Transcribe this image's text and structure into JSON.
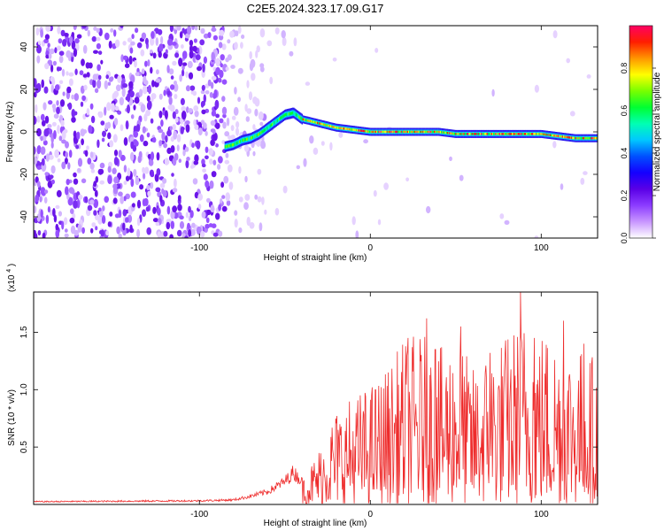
{
  "figure": {
    "title": "C2E5.2024.323.17.09.G17"
  },
  "chart_data": [
    {
      "type": "heatmap",
      "xlabel": "Height of straight line (km)",
      "ylabel": "Frequency (Hz)",
      "xlim": [
        -197,
        133
      ],
      "ylim": [
        -50,
        50
      ],
      "xticks": [
        -100,
        0,
        100
      ],
      "yticks": [
        -40,
        -20,
        0,
        20,
        40
      ],
      "colorbar": {
        "label": "Normalized spectral amplitude",
        "range": [
          0,
          1
        ],
        "ticks": [
          "0.0",
          "0.2",
          "0.4",
          "0.6",
          "0.8"
        ],
        "colors": [
          "#ffffff",
          "#c896ff",
          "#8c3cff",
          "#5a00e6",
          "#1400ff",
          "#0050ff",
          "#00c8ff",
          "#00ffb4",
          "#00ff32",
          "#78ff00",
          "#ffff00",
          "#ff9600",
          "#ff1e00",
          "#ff0064"
        ]
      },
      "ridge": {
        "x": [
          -85,
          -80,
          -75,
          -70,
          -65,
          -60,
          -55,
          -50,
          -45,
          -40,
          -35,
          -30,
          -25,
          -20,
          -10,
          0,
          10,
          20,
          30,
          40,
          50,
          60,
          70,
          80,
          90,
          100,
          110,
          120,
          130
        ],
        "y": [
          -7,
          -6,
          -4,
          -3,
          -1,
          2,
          5,
          8,
          9,
          6,
          5,
          4,
          3,
          2,
          1,
          0,
          0,
          0,
          0,
          0,
          -1,
          -1,
          -1,
          -1,
          -1,
          -1,
          -2,
          -3,
          -3
        ]
      }
    },
    {
      "type": "line",
      "xlabel": "Height of straight line (km)",
      "ylabel": "SNR (10 * v/v)",
      "yscale_label": "(x10",
      "yscale_exp": "4",
      "xlim": [
        -197,
        133
      ],
      "ylim": [
        0,
        1.85
      ],
      "xticks": [
        -100,
        0,
        100
      ],
      "yticks": [
        0.5,
        1.0,
        1.5
      ],
      "ytick_labels": [
        "0.5",
        "1.0",
        "1.5"
      ],
      "color": "#ee2c2c",
      "envelope": {
        "x": [
          -197,
          -150,
          -100,
          -80,
          -70,
          -60,
          -50,
          -45,
          -40,
          -35,
          -30,
          -25,
          -20,
          -10,
          0,
          10,
          20,
          30,
          40,
          50,
          60,
          70,
          80,
          90,
          100,
          110,
          120,
          133
        ],
        "y": [
          0.03,
          0.035,
          0.04,
          0.05,
          0.09,
          0.14,
          0.25,
          0.35,
          0.25,
          0.35,
          0.5,
          0.7,
          0.85,
          0.95,
          1.05,
          1.2,
          1.45,
          1.5,
          1.35,
          1.5,
          1.2,
          1.4,
          1.5,
          1.65,
          1.55,
          1.5,
          1.4,
          1.3
        ]
      },
      "peaks": [
        {
          "x": 22,
          "y": 1.45
        },
        {
          "x": 33,
          "y": 1.62
        },
        {
          "x": 38,
          "y": 1.35
        },
        {
          "x": 53,
          "y": 1.55
        },
        {
          "x": 70,
          "y": 1.32
        },
        {
          "x": 88,
          "y": 1.85
        },
        {
          "x": 96,
          "y": 1.45
        },
        {
          "x": 113,
          "y": 1.6
        },
        {
          "x": 125,
          "y": 1.4
        }
      ]
    }
  ]
}
